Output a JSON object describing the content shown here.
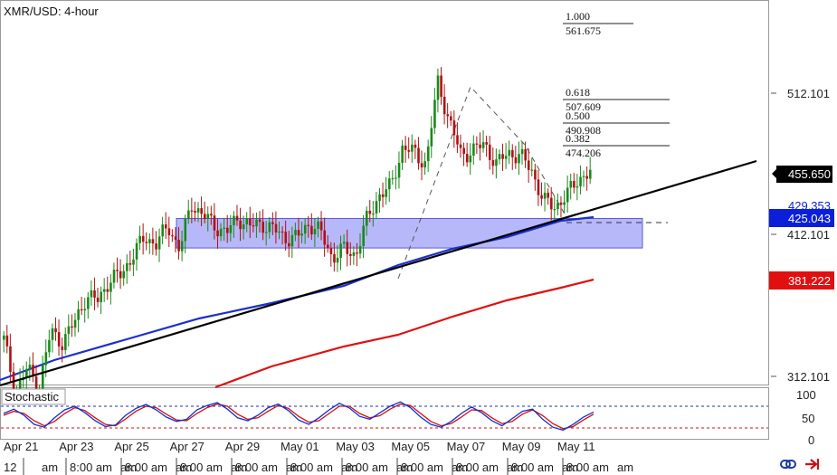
{
  "chart_title": "XMR/USD: 4-hour",
  "colors": {
    "bull": "#1a8a1a",
    "bear": "#b01212",
    "sma_fast": "#1a2fd0",
    "sma_slow": "#e01010",
    "trendline": "#000000",
    "range_box": "#8a8cf5",
    "price_badge": "#000000",
    "support_badge": "#0b1fd8",
    "slow_badge": "#e01010",
    "stoch_k": "#1030d0",
    "stoch_d": "#d01010"
  },
  "price_labels": {
    "current": "455.650",
    "box_top_hidden": "429.353",
    "sma_fast": "425.043",
    "sma_slow": "381.222"
  },
  "ui": {
    "link_icon": "chain-link-icon",
    "arrow_icon": "arrow-right-icon"
  },
  "chart_data": {
    "type": "candlestick",
    "title": "XMR/USD: 4-hour",
    "y_axis": {
      "ticks": [
        "512.101",
        "412.101",
        "312.101"
      ],
      "range": [
        300,
        580
      ]
    },
    "x_axis": {
      "date_labels": [
        "Apr 21",
        "Apr 23",
        "Apr 25",
        "Apr 27",
        "Apr 29",
        "May 01",
        "May 03",
        "May 05",
        "May 07",
        "May 09",
        "May 11"
      ],
      "time_labels": [
        "12",
        "8:00 am",
        "8:00 am",
        "8:00 am",
        "8:00 am",
        "8:00 am",
        "8:00 am",
        "8:00 am",
        "8:00 am",
        "8:00 am",
        "8:00 am"
      ],
      "am_labels": [
        "am",
        "am",
        "am",
        "am",
        "am",
        "am",
        "am",
        "am",
        "am",
        "am",
        "am"
      ]
    },
    "fibonacci": [
      {
        "ratio": "1.000",
        "price": "561.675"
      },
      {
        "ratio": "0.618",
        "price": "507.609"
      },
      {
        "ratio": "0.500",
        "price": "490.908"
      },
      {
        "ratio": "0.382",
        "price": "474.206"
      }
    ],
    "range_box": {
      "top": 430,
      "bottom": 413
    },
    "anchors": {
      "close": [
        338,
        300,
        318,
        304,
        344,
        336,
        350,
        368,
        366,
        380,
        384,
        398,
        410,
        406,
        418,
        402,
        434,
        426,
        418,
        414,
        424,
        418,
        420,
        416,
        410,
        410,
        420,
        414,
        396,
        402,
        398,
        424,
        440,
        446,
        474,
        470,
        462,
        520,
        492,
        468,
        472,
        476,
        462,
        470,
        468,
        458,
        436,
        432,
        440,
        452,
        456
      ],
      "note": "close price per anchor point (~every 3 candles)"
    },
    "series": [
      {
        "name": "fast moving average",
        "color": "#1a2fd0",
        "start": 305,
        "end": 425.043
      },
      {
        "name": "slow moving average",
        "color": "#e01010",
        "start": 300,
        "end": 381.222
      }
    ],
    "indicator": {
      "name": "Stochastic",
      "ticks": [
        "100",
        "50",
        "0"
      ],
      "levels": [
        80,
        20
      ],
      "k": [
        60,
        72,
        55,
        30,
        22,
        48,
        70,
        80,
        62,
        40,
        24,
        28,
        55,
        74,
        85,
        70,
        50,
        38,
        44,
        70,
        82,
        90,
        72,
        48,
        40,
        55,
        76,
        86,
        68,
        42,
        30,
        48,
        70,
        88,
        75,
        52,
        44,
        62,
        80,
        92,
        76,
        50,
        30,
        22,
        38,
        60,
        78,
        62,
        40,
        26,
        46,
        66,
        72,
        44,
        22,
        14,
        30,
        50,
        64
      ],
      "d": [
        55,
        66,
        60,
        40,
        26,
        38,
        60,
        76,
        68,
        48,
        30,
        26,
        45,
        66,
        80,
        76,
        58,
        42,
        40,
        60,
        76,
        86,
        80,
        58,
        44,
        48,
        66,
        82,
        74,
        52,
        36,
        40,
        60,
        80,
        80,
        60,
        48,
        54,
        72,
        86,
        82,
        60,
        38,
        26,
        32,
        50,
        70,
        68,
        48,
        32,
        38,
        58,
        70,
        54,
        32,
        18,
        24,
        42,
        58
      ]
    }
  }
}
